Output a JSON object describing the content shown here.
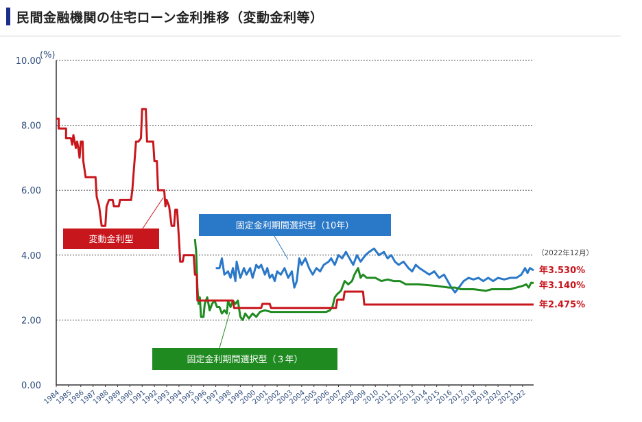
{
  "header": {
    "title": "民間金融機関の住宅ローン金利推移（変動金利等）"
  },
  "chart_data": {
    "type": "line",
    "title": "民間金融機関の住宅ローン金利推移（変動金利等）",
    "ylabel": "(%)",
    "ylim": [
      0,
      10
    ],
    "xlim": [
      1984,
      2022.9
    ],
    "yticks": [
      "0.00",
      "2.00",
      "4.00",
      "6.00",
      "8.00",
      "10.00"
    ],
    "xticks": [
      "1984",
      "1985",
      "1986",
      "1987",
      "1988",
      "1989",
      "1990",
      "1991",
      "1992",
      "1993",
      "1994",
      "1995",
      "1996",
      "1997",
      "1998",
      "1999",
      "2000",
      "2001",
      "2002",
      "2003",
      "2004",
      "2005",
      "2006",
      "2007",
      "2008",
      "2009",
      "2010",
      "2011",
      "2012",
      "2013",
      "2014",
      "2015",
      "2016",
      "2017",
      "2018",
      "2019",
      "2020",
      "2021",
      "2022"
    ],
    "grid": "horizontal dotted",
    "note": "（2022年12月）",
    "series": [
      {
        "name": "変動金利型",
        "color": "#c8161d",
        "end_label": "年2.475%",
        "points": [
          [
            1984.0,
            8.2
          ],
          [
            1984.2,
            8.2
          ],
          [
            1984.2,
            7.9
          ],
          [
            1984.8,
            7.9
          ],
          [
            1984.8,
            7.6
          ],
          [
            1985.2,
            7.6
          ],
          [
            1985.3,
            7.4
          ],
          [
            1985.4,
            7.7
          ],
          [
            1985.6,
            7.3
          ],
          [
            1985.7,
            7.5
          ],
          [
            1985.8,
            7.3
          ],
          [
            1985.9,
            7.0
          ],
          [
            1986.0,
            7.5
          ],
          [
            1986.15,
            7.5
          ],
          [
            1986.2,
            6.9
          ],
          [
            1986.4,
            6.4
          ],
          [
            1987.2,
            6.4
          ],
          [
            1987.3,
            5.8
          ],
          [
            1987.5,
            5.5
          ],
          [
            1987.6,
            5.2
          ],
          [
            1987.7,
            4.9
          ],
          [
            1988.0,
            4.9
          ],
          [
            1988.1,
            5.5
          ],
          [
            1988.3,
            5.7
          ],
          [
            1988.6,
            5.7
          ],
          [
            1988.7,
            5.5
          ],
          [
            1989.1,
            5.5
          ],
          [
            1989.2,
            5.7
          ],
          [
            1990.1,
            5.7
          ],
          [
            1990.2,
            6.0
          ],
          [
            1990.3,
            6.5
          ],
          [
            1990.5,
            7.5
          ],
          [
            1990.7,
            7.5
          ],
          [
            1990.9,
            7.6
          ],
          [
            1991.0,
            8.5
          ],
          [
            1991.3,
            8.5
          ],
          [
            1991.4,
            7.5
          ],
          [
            1991.9,
            7.5
          ],
          [
            1992.0,
            6.9
          ],
          [
            1992.2,
            6.9
          ],
          [
            1992.3,
            6.0
          ],
          [
            1992.8,
            6.0
          ],
          [
            1992.9,
            5.5
          ],
          [
            1993.0,
            5.7
          ],
          [
            1993.2,
            5.5
          ],
          [
            1993.4,
            4.9
          ],
          [
            1993.6,
            4.9
          ],
          [
            1993.7,
            5.4
          ],
          [
            1993.85,
            5.4
          ],
          [
            1994.0,
            4.5
          ],
          [
            1994.1,
            3.8
          ],
          [
            1994.3,
            3.8
          ],
          [
            1994.4,
            4.0
          ],
          [
            1995.2,
            4.0
          ],
          [
            1995.3,
            3.4
          ],
          [
            1995.45,
            3.4
          ],
          [
            1995.5,
            2.6
          ],
          [
            1998.4,
            2.6
          ],
          [
            1998.5,
            2.375
          ],
          [
            2000.7,
            2.375
          ],
          [
            2000.8,
            2.5
          ],
          [
            2001.4,
            2.5
          ],
          [
            2001.5,
            2.375
          ],
          [
            2006.8,
            2.375
          ],
          [
            2006.9,
            2.625
          ],
          [
            2007.4,
            2.625
          ],
          [
            2007.5,
            2.875
          ],
          [
            2009.0,
            2.875
          ],
          [
            2009.1,
            2.475
          ],
          [
            2022.9,
            2.475
          ]
        ]
      },
      {
        "name": "固定金利期間選択型（10年）",
        "color": "#2a78c8",
        "end_label": "年3.530%",
        "points": [
          [
            1997.0,
            3.6
          ],
          [
            1997.3,
            3.6
          ],
          [
            1997.5,
            3.9
          ],
          [
            1997.7,
            3.4
          ],
          [
            1998.0,
            3.5
          ],
          [
            1998.2,
            3.3
          ],
          [
            1998.4,
            3.6
          ],
          [
            1998.6,
            3.2
          ],
          [
            1998.7,
            3.8
          ],
          [
            1999.0,
            3.3
          ],
          [
            1999.3,
            3.6
          ],
          [
            1999.5,
            3.4
          ],
          [
            1999.8,
            3.6
          ],
          [
            2000.0,
            3.3
          ],
          [
            2000.3,
            3.7
          ],
          [
            2000.5,
            3.6
          ],
          [
            2000.7,
            3.7
          ],
          [
            2001.0,
            3.4
          ],
          [
            2001.2,
            3.6
          ],
          [
            2001.4,
            3.3
          ],
          [
            2001.6,
            3.4
          ],
          [
            2001.8,
            3.2
          ],
          [
            2002.0,
            3.5
          ],
          [
            2002.3,
            3.4
          ],
          [
            2002.6,
            3.6
          ],
          [
            2002.9,
            3.3
          ],
          [
            2003.2,
            3.5
          ],
          [
            2003.4,
            3.0
          ],
          [
            2003.6,
            3.2
          ],
          [
            2003.8,
            3.9
          ],
          [
            2004.0,
            3.7
          ],
          [
            2004.3,
            3.9
          ],
          [
            2004.6,
            3.6
          ],
          [
            2004.9,
            3.4
          ],
          [
            2005.2,
            3.6
          ],
          [
            2005.5,
            3.5
          ],
          [
            2005.8,
            3.7
          ],
          [
            2006.2,
            3.8
          ],
          [
            2006.4,
            3.9
          ],
          [
            2006.7,
            3.7
          ],
          [
            2007.0,
            4.0
          ],
          [
            2007.3,
            3.9
          ],
          [
            2007.6,
            4.1
          ],
          [
            2007.9,
            3.9
          ],
          [
            2008.2,
            3.7
          ],
          [
            2008.5,
            4.0
          ],
          [
            2008.8,
            3.8
          ],
          [
            2009.2,
            4.0
          ],
          [
            2009.5,
            4.1
          ],
          [
            2009.9,
            4.2
          ],
          [
            2010.3,
            4.0
          ],
          [
            2010.7,
            4.1
          ],
          [
            2011.0,
            3.9
          ],
          [
            2011.3,
            4.0
          ],
          [
            2011.6,
            3.8
          ],
          [
            2011.9,
            3.7
          ],
          [
            2012.3,
            3.8
          ],
          [
            2012.7,
            3.6
          ],
          [
            2013.0,
            3.5
          ],
          [
            2013.3,
            3.7
          ],
          [
            2013.6,
            3.6
          ],
          [
            2014.0,
            3.5
          ],
          [
            2014.4,
            3.4
          ],
          [
            2014.8,
            3.5
          ],
          [
            2015.2,
            3.3
          ],
          [
            2015.6,
            3.4
          ],
          [
            2015.9,
            3.2
          ],
          [
            2016.2,
            3.0
          ],
          [
            2016.5,
            2.85
          ],
          [
            2016.8,
            3.0
          ],
          [
            2017.2,
            3.2
          ],
          [
            2017.6,
            3.3
          ],
          [
            2018.0,
            3.25
          ],
          [
            2018.4,
            3.3
          ],
          [
            2018.8,
            3.2
          ],
          [
            2019.2,
            3.3
          ],
          [
            2019.6,
            3.2
          ],
          [
            2020.0,
            3.3
          ],
          [
            2020.5,
            3.25
          ],
          [
            2021.0,
            3.3
          ],
          [
            2021.5,
            3.3
          ],
          [
            2021.9,
            3.4
          ],
          [
            2022.2,
            3.6
          ],
          [
            2022.4,
            3.45
          ],
          [
            2022.6,
            3.6
          ],
          [
            2022.9,
            3.53
          ]
        ]
      },
      {
        "name": "固定金利期間選択型（３年）",
        "color": "#1f8a20",
        "end_label": "年3.140%",
        "points": [
          [
            1995.3,
            4.5
          ],
          [
            1995.4,
            4.1
          ],
          [
            1995.5,
            3.0
          ],
          [
            1995.6,
            2.5
          ],
          [
            1995.7,
            2.7
          ],
          [
            1995.8,
            2.1
          ],
          [
            1996.0,
            2.1
          ],
          [
            1996.1,
            2.5
          ],
          [
            1996.3,
            2.7
          ],
          [
            1996.5,
            2.3
          ],
          [
            1996.7,
            2.5
          ],
          [
            1996.9,
            2.6
          ],
          [
            1997.1,
            2.4
          ],
          [
            1997.3,
            2.4
          ],
          [
            1997.5,
            2.2
          ],
          [
            1997.7,
            2.3
          ],
          [
            1997.9,
            2.2
          ],
          [
            1998.0,
            2.6
          ],
          [
            1998.2,
            2.4
          ],
          [
            1998.4,
            2.6
          ],
          [
            1998.6,
            2.5
          ],
          [
            1998.8,
            2.6
          ],
          [
            1999.0,
            2.1
          ],
          [
            1999.2,
            2.0
          ],
          [
            1999.4,
            2.2
          ],
          [
            1999.7,
            2.05
          ],
          [
            2000.0,
            2.2
          ],
          [
            2000.3,
            2.1
          ],
          [
            2000.6,
            2.25
          ],
          [
            2001.0,
            2.3
          ],
          [
            2001.5,
            2.25
          ],
          [
            2002.0,
            2.25
          ],
          [
            2004.0,
            2.25
          ],
          [
            2006.0,
            2.25
          ],
          [
            2006.3,
            2.3
          ],
          [
            2006.5,
            2.4
          ],
          [
            2006.7,
            2.7
          ],
          [
            2006.9,
            2.8
          ],
          [
            2007.2,
            2.9
          ],
          [
            2007.5,
            3.2
          ],
          [
            2007.8,
            3.1
          ],
          [
            2008.1,
            3.2
          ],
          [
            2008.3,
            3.4
          ],
          [
            2008.6,
            3.6
          ],
          [
            2008.8,
            3.3
          ],
          [
            2009.0,
            3.4
          ],
          [
            2009.3,
            3.3
          ],
          [
            2009.6,
            3.3
          ],
          [
            2010.0,
            3.3
          ],
          [
            2010.5,
            3.2
          ],
          [
            2011.0,
            3.25
          ],
          [
            2011.5,
            3.2
          ],
          [
            2012.0,
            3.2
          ],
          [
            2012.5,
            3.1
          ],
          [
            2013.5,
            3.1
          ],
          [
            2015.0,
            3.05
          ],
          [
            2016.0,
            3.0
          ],
          [
            2016.5,
            3.0
          ],
          [
            2017.0,
            2.95
          ],
          [
            2018.0,
            2.95
          ],
          [
            2019.0,
            2.9
          ],
          [
            2019.5,
            2.95
          ],
          [
            2020.0,
            2.95
          ],
          [
            2021.0,
            2.95
          ],
          [
            2021.5,
            3.0
          ],
          [
            2022.0,
            3.05
          ],
          [
            2022.3,
            3.1
          ],
          [
            2022.5,
            3.0
          ],
          [
            2022.7,
            3.15
          ],
          [
            2022.9,
            3.14
          ]
        ]
      }
    ]
  }
}
